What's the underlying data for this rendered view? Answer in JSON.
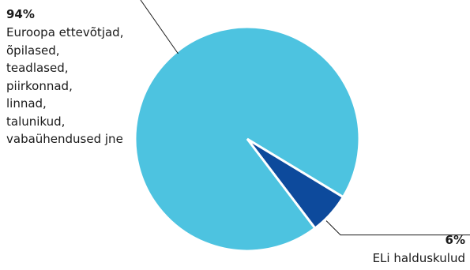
{
  "chart_data": {
    "type": "pie",
    "slices": [
      {
        "value": 94,
        "percent_label": "94%",
        "label_lines": [
          "Euroopa ettevõtjad,",
          "õpilased,",
          "teadlased,",
          "piirkonnad,",
          "linnad,",
          "talunikud,",
          "vabaühendused jne"
        ],
        "color": "#4dc3e0"
      },
      {
        "value": 6,
        "percent_label": "6%",
        "label_lines": [
          "ELi halduskulud"
        ],
        "color": "#0d4a9c"
      }
    ],
    "legend": "none",
    "leader_line_color": "#1a1a1a"
  }
}
